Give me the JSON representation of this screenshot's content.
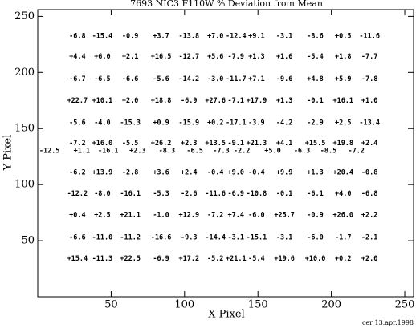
{
  "chart_data": {
    "type": "text",
    "title": "7693 NIC3 F110W % Deviation from Mean",
    "x_label": "X Pixel",
    "y_label": "Y Pixel",
    "footer": "cer 13.apr.1998",
    "xlim": [
      0,
      256
    ],
    "ylim": [
      0,
      256
    ],
    "xticks": [
      50,
      100,
      150,
      200,
      250
    ],
    "yticks": [
      50,
      100,
      150,
      200,
      250
    ],
    "color": "#000000",
    "series": [
      {
        "y": 232.5,
        "x": [
          27,
          44,
          63,
          84,
          103,
          121,
          135,
          149,
          168,
          189,
          208,
          226
        ],
        "values": [
          -6.8,
          -15.4,
          -0.9,
          3.7,
          -13.8,
          7.0,
          -12.4,
          9.1,
          -3.1,
          -8.6,
          0.5,
          -11.6
        ],
        "value_labels": [
          "-6.8",
          "-15.4",
          "-0.9",
          "+3.7",
          "-13.8",
          "+7.0",
          "-12.4",
          "+9.1",
          "-3.1",
          "-8.6",
          "+0.5",
          "-11.6"
        ]
      },
      {
        "y": 214,
        "x": [
          27,
          44,
          63,
          84,
          103,
          121,
          135,
          149,
          168,
          189,
          208,
          226
        ],
        "values": [
          4.4,
          6.0,
          2.1,
          16.5,
          -12.7,
          5.6,
          -7.9,
          1.3,
          1.6,
          -5.4,
          1.8,
          -7.7
        ],
        "value_labels": [
          "+4.4",
          "+6.0",
          "+2.1",
          "+16.5",
          "-12.7",
          "+5.6",
          "-7.9",
          "+1.3",
          "+1.6",
          "-5.4",
          "+1.8",
          "-7.7"
        ]
      },
      {
        "y": 194,
        "x": [
          27,
          44,
          63,
          84,
          103,
          121,
          135,
          149,
          168,
          189,
          208,
          226
        ],
        "values": [
          -6.7,
          -6.5,
          -6.6,
          -5.6,
          -14.2,
          -3.0,
          -11.7,
          7.1,
          -9.6,
          4.8,
          5.9,
          -7.8
        ],
        "value_labels": [
          "-6.7",
          "-6.5",
          "-6.6",
          "-5.6",
          "-14.2",
          "-3.0",
          "-11.7",
          "+7.1",
          "-9.6",
          "+4.8",
          "+5.9",
          "-7.8"
        ]
      },
      {
        "y": 175,
        "x": [
          27,
          44,
          63,
          84,
          103,
          121,
          135,
          149,
          168,
          189,
          208,
          226
        ],
        "values": [
          22.7,
          10.1,
          2.0,
          18.8,
          -6.9,
          27.6,
          -7.1,
          17.9,
          1.3,
          -0.1,
          16.1,
          1.0
        ],
        "value_labels": [
          "+22.7",
          "+10.1",
          "+2.0",
          "+18.8",
          "-6.9",
          "+27.6",
          "-7.1",
          "+17.9",
          "+1.3",
          "-0.1",
          "+16.1",
          "+1.0"
        ]
      },
      {
        "y": 155,
        "x": [
          27,
          44,
          63,
          84,
          103,
          121,
          135,
          149,
          168,
          189,
          208,
          226
        ],
        "values": [
          -5.6,
          -4.0,
          -15.3,
          0.9,
          -15.9,
          0.2,
          -17.1,
          -3.9,
          -4.2,
          -2.9,
          2.5,
          -13.4
        ],
        "value_labels": [
          "-5.6",
          "-4.0",
          "-15.3",
          "+0.9",
          "-15.9",
          "+0.2",
          "-17.1",
          "-3.9",
          "-4.2",
          "-2.9",
          "+2.5",
          "-13.4"
        ]
      },
      {
        "y": 137,
        "x": [
          27,
          44,
          63,
          84,
          103,
          121,
          135,
          149,
          168,
          189,
          208,
          226
        ],
        "values": [
          -7.2,
          16.0,
          -5.5,
          26.2,
          2.3,
          13.5,
          -9.1,
          21.3,
          4.1,
          15.5,
          19.8,
          2.4
        ],
        "value_labels": [
          "-7.2",
          "+16.0",
          "-5.5",
          "+26.2",
          "+2.3",
          "+13.5",
          "-9.1",
          "+21.3",
          "+4.1",
          "+15.5",
          "+19.8",
          "+2.4"
        ]
      },
      {
        "y": 130,
        "x": [
          8,
          30,
          48,
          68,
          88,
          107,
          125,
          139,
          160,
          180,
          198,
          217
        ],
        "values": [
          -12.5,
          1.1,
          -16.1,
          2.3,
          -8.3,
          -6.5,
          -7.3,
          -2.2,
          5.0,
          -6.3,
          -8.5,
          -7.2
        ],
        "value_labels": [
          "-12.5",
          "+1.1",
          "-16.1",
          "+2.3",
          "-8.3",
          "-6.5",
          "-7.3",
          "-2.2",
          "+5.0",
          "-6.3",
          "-8.5",
          "-7.2"
        ]
      },
      {
        "y": 111,
        "x": [
          27,
          44,
          63,
          84,
          103,
          121,
          135,
          149,
          168,
          189,
          208,
          226
        ],
        "values": [
          -6.2,
          13.9,
          -2.8,
          3.6,
          2.4,
          -0.4,
          9.0,
          -0.4,
          9.9,
          1.3,
          20.4,
          -0.8
        ],
        "value_labels": [
          "-6.2",
          "+13.9",
          "-2.8",
          "+3.6",
          "+2.4",
          "-0.4",
          "+9.0",
          "-0.4",
          "+9.9",
          "+1.3",
          "+20.4",
          "-0.8"
        ]
      },
      {
        "y": 92,
        "x": [
          27,
          44,
          63,
          84,
          103,
          121,
          135,
          149,
          168,
          189,
          208,
          226
        ],
        "values": [
          -12.2,
          -8.0,
          -16.1,
          -5.3,
          -2.6,
          -11.6,
          -6.9,
          -10.8,
          -0.1,
          -6.1,
          4.0,
          -6.8
        ],
        "value_labels": [
          "-12.2",
          "-8.0",
          "-16.1",
          "-5.3",
          "-2.6",
          "-11.6",
          "-6.9",
          "-10.8",
          "-0.1",
          "-6.1",
          "+4.0",
          "-6.8"
        ]
      },
      {
        "y": 73,
        "x": [
          27,
          44,
          63,
          84,
          103,
          121,
          135,
          149,
          168,
          189,
          208,
          226
        ],
        "values": [
          0.4,
          2.5,
          21.1,
          -1.0,
          12.9,
          -7.2,
          7.4,
          -6.0,
          25.7,
          -0.9,
          26.0,
          2.2
        ],
        "value_labels": [
          "+0.4",
          "+2.5",
          "+21.1",
          "-1.0",
          "+12.9",
          "-7.2",
          "+7.4",
          "-6.0",
          "+25.7",
          "-0.9",
          "+26.0",
          "+2.2"
        ]
      },
      {
        "y": 53,
        "x": [
          27,
          44,
          63,
          84,
          103,
          121,
          135,
          149,
          168,
          189,
          208,
          226
        ],
        "values": [
          -6.6,
          -11.0,
          -11.2,
          -16.6,
          -9.3,
          -14.4,
          -3.1,
          -15.1,
          -3.1,
          -6.0,
          -1.7,
          -2.1
        ],
        "value_labels": [
          "-6.6",
          "-11.0",
          "-11.2",
          "-16.6",
          "-9.3",
          "-14.4",
          "-3.1",
          "-15.1",
          "-3.1",
          "-6.0",
          "-1.7",
          "-2.1"
        ]
      },
      {
        "y": 34,
        "x": [
          27,
          44,
          63,
          84,
          103,
          121,
          135,
          149,
          168,
          189,
          208,
          226
        ],
        "values": [
          15.4,
          -11.3,
          22.5,
          -6.9,
          17.2,
          -5.2,
          21.1,
          -5.4,
          19.6,
          10.0,
          0.2,
          2.0
        ],
        "value_labels": [
          "+15.4",
          "-11.3",
          "+22.5",
          "-6.9",
          "+17.2",
          "-5.2",
          "+21.1",
          "-5.4",
          "+19.6",
          "+10.0",
          "+0.2",
          "+2.0"
        ]
      }
    ]
  }
}
